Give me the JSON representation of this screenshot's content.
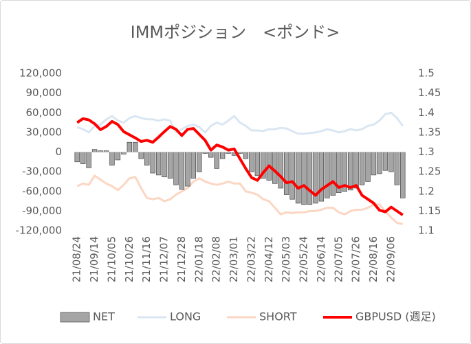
{
  "chart_data": {
    "type": "bar_line",
    "title": "IMMポジション　<ポンド>",
    "categories": [
      "21/08/24",
      null,
      null,
      "21/09/14",
      null,
      null,
      "21/10/05",
      null,
      null,
      "21/10/26",
      null,
      null,
      "21/11/16",
      null,
      null,
      "21/12/07",
      null,
      null,
      "21/12/28",
      null,
      null,
      "22/01/18",
      null,
      null,
      "22/02/08",
      null,
      null,
      "22/03/01",
      null,
      null,
      "22/03/22",
      null,
      null,
      "22/04/12",
      null,
      null,
      "22/05/03",
      null,
      null,
      "22/05/24",
      null,
      null,
      "22/06/14",
      null,
      null,
      "22/07/05",
      null,
      null,
      "22/07/26",
      null,
      null,
      "22/08/16",
      null,
      null,
      "22/09/06",
      null,
      null
    ],
    "series": [
      {
        "name": "NET",
        "kind": "bar",
        "color": "#a5a5a5",
        "values": [
          -15000,
          -18000,
          -24000,
          4000,
          2000,
          2000,
          -20000,
          -12000,
          -3000,
          15000,
          15000,
          -10000,
          -20000,
          -32000,
          -35000,
          -38000,
          -40000,
          -50000,
          -57000,
          -52000,
          -40000,
          -30000,
          -2000,
          -8000,
          -25000,
          -10000,
          -2000,
          -5000,
          -2000,
          -10000,
          -30000,
          -36000,
          -40000,
          -43000,
          -48000,
          -55000,
          -65000,
          -72000,
          -78000,
          -80000,
          -80000,
          -78000,
          -75000,
          -70000,
          -66000,
          -62000,
          -60000,
          -58000,
          -55000,
          -50000,
          -45000,
          -35000,
          -33000,
          -28000,
          -30000,
          -50000,
          -70000
        ]
      },
      {
        "name": "LONG",
        "kind": "line",
        "color": "#dae6f2",
        "values": [
          38000,
          35000,
          30000,
          40000,
          42000,
          50000,
          55000,
          48000,
          45000,
          52000,
          55000,
          52000,
          50000,
          50000,
          48000,
          50000,
          48000,
          30000,
          35000,
          40000,
          42000,
          38000,
          30000,
          40000,
          45000,
          42000,
          48000,
          55000,
          45000,
          40000,
          33000,
          33000,
          32000,
          35000,
          35000,
          37000,
          36000,
          32000,
          28000,
          28000,
          29000,
          30000,
          32000,
          35000,
          33000,
          30000,
          32000,
          35000,
          33000,
          35000,
          40000,
          42000,
          48000,
          58000,
          60000,
          52000,
          40000
        ]
      },
      {
        "name": "SHORT",
        "kind": "line",
        "color": "#fbd6c3",
        "values": [
          -52000,
          -48000,
          -50000,
          -36000,
          -42000,
          -48000,
          -52000,
          -58000,
          -50000,
          -40000,
          -38000,
          -55000,
          -70000,
          -72000,
          -70000,
          -75000,
          -72000,
          -65000,
          -60000,
          -55000,
          -45000,
          -40000,
          -45000,
          -48000,
          -50000,
          -48000,
          -45000,
          -48000,
          -48000,
          -60000,
          -62000,
          -65000,
          -72000,
          -75000,
          -85000,
          -95000,
          -92000,
          -93000,
          -92000,
          -92000,
          -90000,
          -90000,
          -88000,
          -85000,
          -85000,
          -92000,
          -95000,
          -90000,
          -88000,
          -88000,
          -85000,
          -80000,
          -80000,
          -90000,
          -100000,
          -108000,
          -110000
        ]
      },
      {
        "name": "GBPUSD (週足)",
        "kind": "line",
        "axis": "y2",
        "color": "#ff0000",
        "values": [
          1.375,
          1.385,
          1.382,
          1.372,
          1.357,
          1.365,
          1.378,
          1.37,
          1.352,
          1.344,
          1.336,
          1.327,
          1.33,
          1.325,
          1.338,
          1.352,
          1.365,
          1.358,
          1.342,
          1.358,
          1.36,
          1.345,
          1.33,
          1.305,
          1.318,
          1.313,
          1.305,
          1.308,
          1.283,
          1.258,
          1.235,
          1.228,
          1.248,
          1.265,
          1.252,
          1.238,
          1.222,
          1.225,
          1.208,
          1.215,
          1.202,
          1.19,
          1.205,
          1.215,
          1.225,
          1.21,
          1.215,
          1.21,
          1.215,
          1.19,
          1.18,
          1.17,
          1.152,
          1.148,
          1.16,
          1.15,
          1.14
        ]
      }
    ],
    "ylim": [
      -120000,
      120000
    ],
    "yticks": [
      {
        "value": -120000,
        "label": "-120,000"
      },
      {
        "value": -90000,
        "label": "-90,000"
      },
      {
        "value": -60000,
        "label": "-60,000"
      },
      {
        "value": -30000,
        "label": "-30,000"
      },
      0,
      {
        "value": 30000,
        "label": "30,000"
      },
      {
        "value": 60000,
        "label": "60,000"
      },
      {
        "value": 90000,
        "label": "90,000"
      },
      {
        "value": 120000,
        "label": "120,000"
      }
    ],
    "y2lim": [
      1.1,
      1.5
    ],
    "y2ticks": [
      1.1,
      1.15,
      1.2,
      1.25,
      1.3,
      1.35,
      1.4,
      1.45,
      1.5
    ],
    "legend": "bottom"
  }
}
